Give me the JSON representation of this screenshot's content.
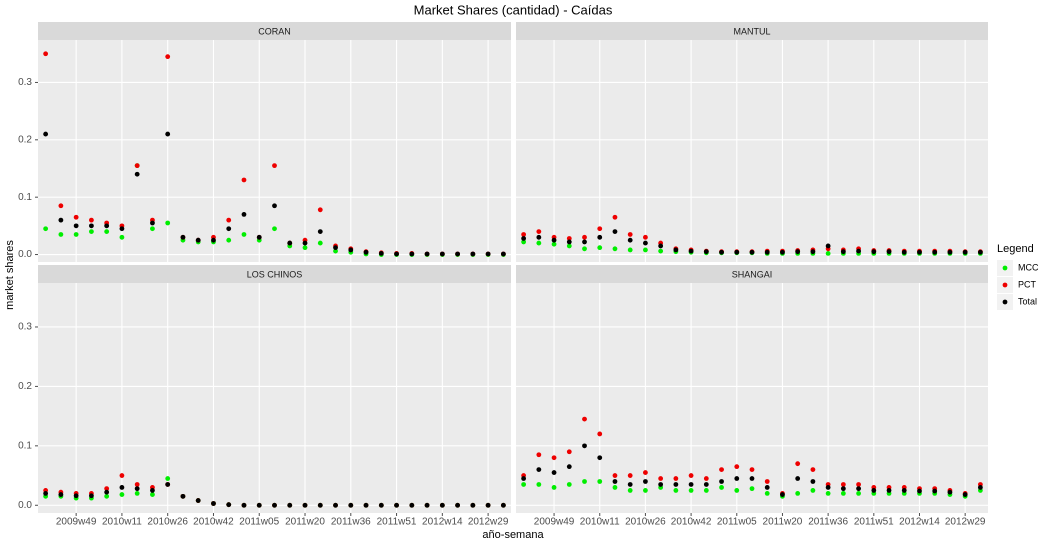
{
  "chart_data": {
    "type": "scatter",
    "title": "Market Shares (cantidad) - Caídas",
    "x_label": "año-semana",
    "y_label": "market shares",
    "legend_title": "Legend",
    "series": [
      {
        "name": "MCC",
        "color": "#00ee00"
      },
      {
        "name": "PCT",
        "color": "#ee0000"
      },
      {
        "name": "Total",
        "color": "#000000"
      }
    ],
    "categories": [
      null,
      null,
      "2009w49",
      null,
      null,
      "2010w11",
      null,
      null,
      "2010w26",
      null,
      null,
      "2010w42",
      null,
      null,
      "2011w05",
      null,
      null,
      "2011w20",
      null,
      null,
      "2011w36",
      null,
      null,
      "2011w51",
      null,
      null,
      "2012w14",
      null,
      null,
      "2012w29",
      null
    ],
    "ylim": [
      -0.013,
      0.374
    ],
    "yticks": [
      {
        "value": 0,
        "label": "0.0"
      },
      {
        "value": 0.1,
        "label": "0.1"
      },
      {
        "value": 0.2,
        "label": "0.2"
      },
      {
        "value": 0.3,
        "label": "0.3"
      }
    ],
    "grid": true,
    "facets": [
      {
        "title": "CORAN",
        "values": [
          [
            0.045,
            0.035,
            0.035,
            0.04,
            0.04,
            0.03,
            0.155,
            0.045,
            0.055,
            0.025,
            0.022,
            0.022,
            0.025,
            0.035,
            0.025,
            0.045,
            0.015,
            0.012,
            0.02,
            0.006,
            0.004,
            0.001,
            0,
            0,
            0,
            0,
            0,
            0,
            0,
            0,
            0
          ],
          [
            0.35,
            0.085,
            0.065,
            0.06,
            0.055,
            0.05,
            0.155,
            0.06,
            0.345,
            0.03,
            0.025,
            0.03,
            0.06,
            0.13,
            0.03,
            0.155,
            0.02,
            0.025,
            0.078,
            0.015,
            0.01,
            0.005,
            0.003,
            0.002,
            0.002,
            0.001,
            0.001,
            0.001,
            0.001,
            0.001,
            0.001
          ],
          [
            0.21,
            0.06,
            0.05,
            0.05,
            0.05,
            0.045,
            0.14,
            0.055,
            0.21,
            0.03,
            0.025,
            0.025,
            0.045,
            0.07,
            0.03,
            0.085,
            0.02,
            0.02,
            0.04,
            0.012,
            0.008,
            0.004,
            0.002,
            0.001,
            0.001,
            0.001,
            0.001,
            0.001,
            0.001,
            0.001,
            0.001
          ]
        ]
      },
      {
        "title": "MANTUL",
        "values": [
          [
            0.022,
            0.02,
            0.018,
            0.015,
            0.01,
            0.012,
            0.01,
            0.008,
            0.008,
            0.006,
            0.005,
            0.004,
            0.003,
            0.003,
            0.003,
            0.003,
            0.002,
            0.002,
            0.002,
            0.002,
            0.002,
            0.002,
            0.002,
            0.002,
            0.002,
            0.002,
            0.002,
            0.002,
            0.002,
            0.002,
            0.002
          ],
          [
            0.035,
            0.04,
            0.03,
            0.028,
            0.03,
            0.045,
            0.065,
            0.035,
            0.03,
            0.02,
            0.01,
            0.008,
            0.006,
            0.005,
            0.005,
            0.005,
            0.006,
            0.006,
            0.007,
            0.008,
            0.01,
            0.008,
            0.01,
            0.007,
            0.007,
            0.006,
            0.006,
            0.006,
            0.006,
            0.005,
            0.005
          ],
          [
            0.028,
            0.03,
            0.025,
            0.022,
            0.022,
            0.03,
            0.04,
            0.025,
            0.02,
            0.015,
            0.008,
            0.006,
            0.005,
            0.004,
            0.004,
            0.004,
            0.004,
            0.004,
            0.005,
            0.005,
            0.015,
            0.005,
            0.006,
            0.005,
            0.005,
            0.004,
            0.004,
            0.004,
            0.004,
            0.004,
            0.004
          ]
        ]
      },
      {
        "title": "LOS CHINOS",
        "values": [
          [
            0.015,
            0.015,
            0.012,
            0.012,
            0.015,
            0.018,
            0.02,
            0.018,
            0.045,
            0.015,
            0.008,
            0.003,
            0.001,
            0,
            0,
            0,
            0,
            0,
            0,
            0,
            0,
            0,
            0,
            0,
            0,
            0,
            0,
            0,
            0,
            0,
            0
          ],
          [
            0.025,
            0.022,
            0.02,
            0.02,
            0.028,
            0.05,
            0.035,
            0.03,
            0.035,
            0.015,
            0.008,
            0.003,
            0.001,
            0,
            0,
            0,
            0,
            0,
            0,
            0,
            0,
            0,
            0,
            0,
            0,
            0,
            0,
            0,
            0,
            0,
            0
          ],
          [
            0.02,
            0.018,
            0.016,
            0.016,
            0.022,
            0.03,
            0.028,
            0.025,
            0.035,
            0.015,
            0.008,
            0.003,
            0.001,
            0,
            0,
            0,
            0,
            0,
            0,
            0,
            0,
            0,
            0,
            0,
            0,
            0,
            0,
            0,
            0,
            0,
            0
          ]
        ]
      },
      {
        "title": "SHANGAI",
        "values": [
          [
            0.035,
            0.035,
            0.03,
            0.035,
            0.04,
            0.04,
            0.03,
            0.025,
            0.025,
            0.03,
            0.025,
            0.025,
            0.025,
            0.03,
            0.025,
            0.028,
            0.02,
            0.015,
            0.02,
            0.025,
            0.02,
            0.02,
            0.02,
            0.02,
            0.02,
            0.02,
            0.02,
            0.02,
            0.018,
            0.015,
            0.025
          ],
          [
            0.05,
            0.085,
            0.08,
            0.09,
            0.145,
            0.12,
            0.05,
            0.05,
            0.055,
            0.045,
            0.045,
            0.05,
            0.045,
            0.06,
            0.065,
            0.06,
            0.04,
            0.02,
            0.07,
            0.06,
            0.035,
            0.035,
            0.035,
            0.03,
            0.03,
            0.03,
            0.028,
            0.028,
            0.025,
            0.02,
            0.035
          ],
          [
            0.045,
            0.06,
            0.055,
            0.065,
            0.1,
            0.08,
            0.04,
            0.035,
            0.04,
            0.035,
            0.035,
            0.035,
            0.035,
            0.04,
            0.045,
            0.045,
            0.03,
            0.018,
            0.045,
            0.04,
            0.03,
            0.028,
            0.028,
            0.025,
            0.025,
            0.025,
            0.024,
            0.024,
            0.022,
            0.018,
            0.03
          ]
        ]
      }
    ]
  }
}
